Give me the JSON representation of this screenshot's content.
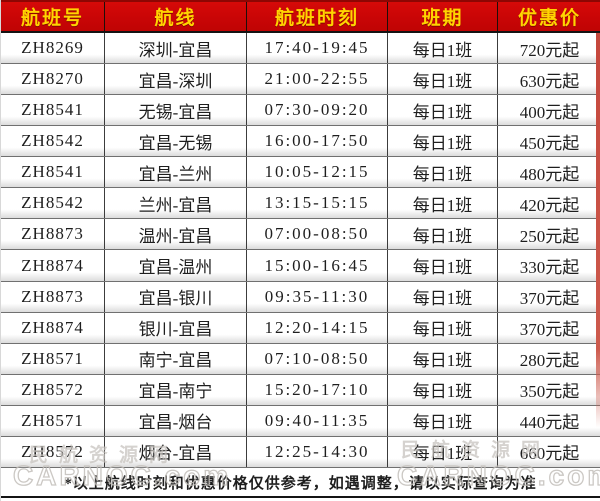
{
  "table": {
    "headers": [
      "航班号",
      "航线",
      "航班时刻",
      "班期",
      "优惠价"
    ],
    "rows": [
      [
        "ZH8269",
        "深圳-宜昌",
        "17:40-19:45",
        "每日1班",
        "720元起"
      ],
      [
        "ZH8270",
        "宜昌-深圳",
        "21:00-22:55",
        "每日1班",
        "630元起"
      ],
      [
        "ZH8541",
        "无锡-宜昌",
        "07:30-09:20",
        "每日1班",
        "400元起"
      ],
      [
        "ZH8542",
        "宜昌-无锡",
        "16:00-17:50",
        "每日1班",
        "450元起"
      ],
      [
        "ZH8541",
        "宜昌-兰州",
        "10:05-12:15",
        "每日1班",
        "480元起"
      ],
      [
        "ZH8542",
        "兰州-宜昌",
        "13:15-15:15",
        "每日1班",
        "420元起"
      ],
      [
        "ZH8873",
        "温州-宜昌",
        "07:00-08:50",
        "每日1班",
        "250元起"
      ],
      [
        "ZH8874",
        "宜昌-温州",
        "15:00-16:45",
        "每日1班",
        "330元起"
      ],
      [
        "ZH8873",
        "宜昌-银川",
        "09:35-11:30",
        "每日1班",
        "370元起"
      ],
      [
        "ZH8874",
        "银川-宜昌",
        "12:20-14:15",
        "每日1班",
        "370元起"
      ],
      [
        "ZH8571",
        "南宁-宜昌",
        "07:10-08:50",
        "每日1班",
        "280元起"
      ],
      [
        "ZH8572",
        "宜昌-南宁",
        "15:20-17:10",
        "每日1班",
        "350元起"
      ],
      [
        "ZH8571",
        "宜昌-烟台",
        "09:40-11:35",
        "每日1班",
        "440元起"
      ],
      [
        "ZH8572",
        "烟台-宜昌",
        "12:25-14:30",
        "每日1班",
        "660元起"
      ]
    ],
    "footnote": "*以上航线时刻和优惠价格仅供参考，如遇调整，请以实际查询为准"
  },
  "watermark": {
    "site_name": "民航资源网",
    "site_domain": "CARNOC.com"
  },
  "colors": {
    "header_bg": "#c90506",
    "header_text": "#ffd401",
    "text": "#1e1e1e",
    "row_line": "#707070",
    "row_shade": "#dcdcdc",
    "right_stripe": "#c5473c",
    "watermark": "#c6c2bd"
  }
}
